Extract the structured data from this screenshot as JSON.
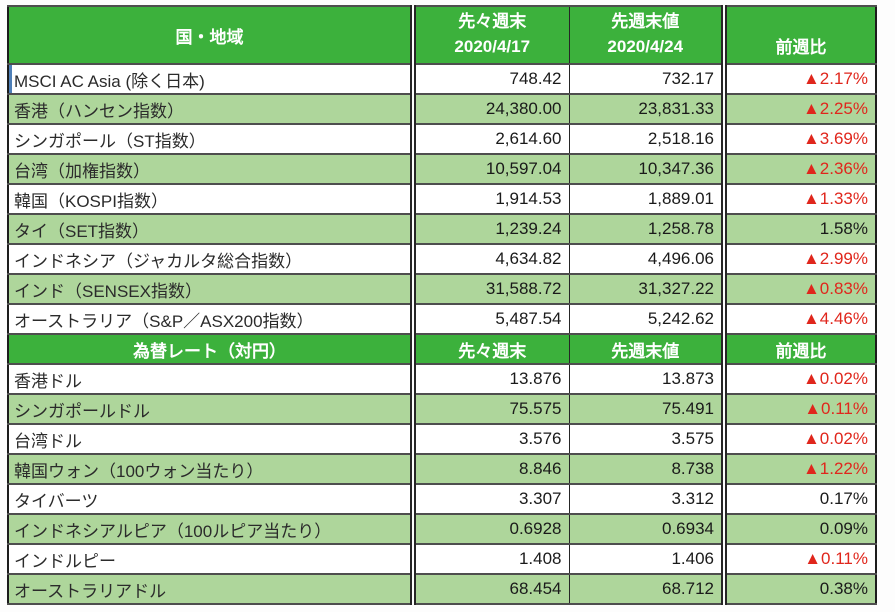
{
  "marks": {
    "down_triangle": "▲"
  },
  "colors": {
    "header_green": "#3cb13c",
    "row_alt_green": "#aed69b",
    "negative_red": "#e0261c",
    "text_black": "#1a1a1a"
  },
  "chart_data": [
    {
      "type": "table",
      "title": "国・地域",
      "header": {
        "col1": "国・地域",
        "col2": [
          "先々週末",
          "2020/4/17"
        ],
        "col3": [
          "先週末値",
          "2020/4/24"
        ],
        "col4": "前週比"
      },
      "rows": [
        {
          "label": "MSCI AC Asia (除く日本)",
          "prev": "748.42",
          "last": "732.17",
          "change": "2.17%",
          "direction": "down"
        },
        {
          "label": "香港（ハンセン指数）",
          "prev": "24,380.00",
          "last": "23,831.33",
          "change": "2.25%",
          "direction": "down"
        },
        {
          "label": "シンガポール（ST指数）",
          "prev": "2,614.60",
          "last": "2,518.16",
          "change": "3.69%",
          "direction": "down"
        },
        {
          "label": "台湾（加権指数）",
          "prev": "10,597.04",
          "last": "10,347.36",
          "change": "2.36%",
          "direction": "down"
        },
        {
          "label": "韓国（KOSPI指数）",
          "prev": "1,914.53",
          "last": "1,889.01",
          "change": "1.33%",
          "direction": "down"
        },
        {
          "label": "タイ（SET指数）",
          "prev": "1,239.24",
          "last": "1,258.78",
          "change": "1.58%",
          "direction": "none"
        },
        {
          "label": "インドネシア（ジャカルタ総合指数）",
          "prev": "4,634.82",
          "last": "4,496.06",
          "change": "2.99%",
          "direction": "down"
        },
        {
          "label": "インド（SENSEX指数）",
          "prev": "31,588.72",
          "last": "31,327.22",
          "change": "0.83%",
          "direction": "down"
        },
        {
          "label": "オーストラリア（S&P／ASX200指数）",
          "prev": "5,487.54",
          "last": "5,242.62",
          "change": "4.46%",
          "direction": "down"
        }
      ]
    },
    {
      "type": "table",
      "title": "為替レート（対円）",
      "header": {
        "col1": "為替レート（対円）",
        "col2": "先々週末",
        "col3": "先週末値",
        "col4": "前週比"
      },
      "rows": [
        {
          "label": "香港ドル",
          "prev": "13.876",
          "last": "13.873",
          "change": "0.02%",
          "direction": "down"
        },
        {
          "label": "シンガポールドル",
          "prev": "75.575",
          "last": "75.491",
          "change": "0.11%",
          "direction": "down"
        },
        {
          "label": "台湾ドル",
          "prev": "3.576",
          "last": "3.575",
          "change": "0.02%",
          "direction": "down"
        },
        {
          "label": "韓国ウォン（100ウォン当たり）",
          "prev": "8.846",
          "last": "8.738",
          "change": "1.22%",
          "direction": "down"
        },
        {
          "label": "タイバーツ",
          "prev": "3.307",
          "last": "3.312",
          "change": "0.17%",
          "direction": "none"
        },
        {
          "label": "インドネシアルピア（100ルピア当たり）",
          "prev": "0.6928",
          "last": "0.6934",
          "change": "0.09%",
          "direction": "none"
        },
        {
          "label": "インドルピー",
          "prev": "1.408",
          "last": "1.406",
          "change": "0.11%",
          "direction": "down"
        },
        {
          "label": "オーストラリアドル",
          "prev": "68.454",
          "last": "68.712",
          "change": "0.38%",
          "direction": "none"
        }
      ]
    }
  ]
}
